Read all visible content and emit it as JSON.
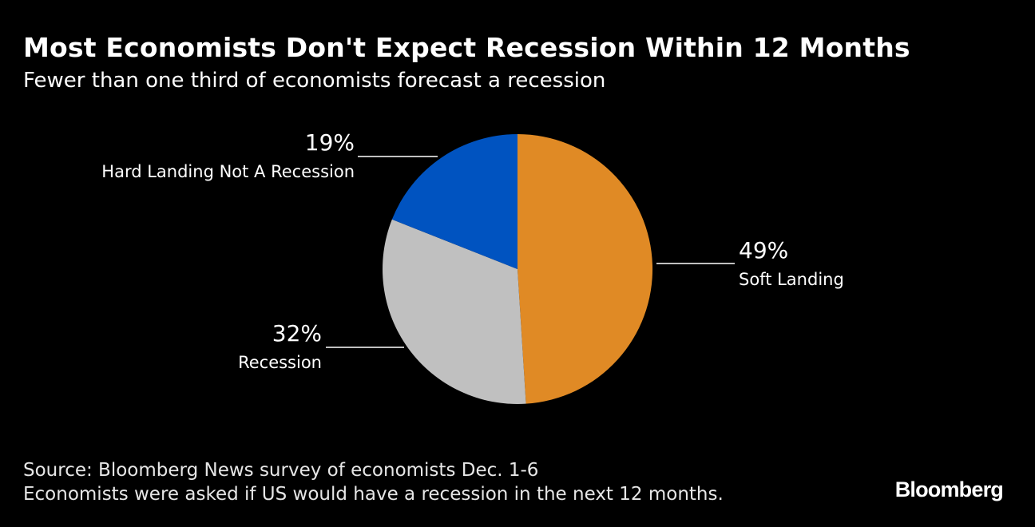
{
  "header": {
    "title": "Most Economists Don't Expect Recession Within 12 Months",
    "subtitle": "Fewer than one third of economists forecast a recession"
  },
  "chart_data": {
    "type": "pie",
    "slices": [
      {
        "label": "Soft Landing",
        "value": 49,
        "display": "49%",
        "color": "#e08a25"
      },
      {
        "label": "Recession",
        "value": 32,
        "display": "32%",
        "color": "#c0c0c0"
      },
      {
        "label": "Hard Landing Not A Recession",
        "value": 19,
        "display": "19%",
        "color": "#0053c0"
      }
    ],
    "start": "12 o'clock",
    "direction": "clockwise"
  },
  "footer": {
    "source": "Source: Bloomberg News survey of economists Dec. 1-6",
    "note": "Economists were asked if US would have a recession in the next 12 months.",
    "brand": "Bloomberg"
  }
}
